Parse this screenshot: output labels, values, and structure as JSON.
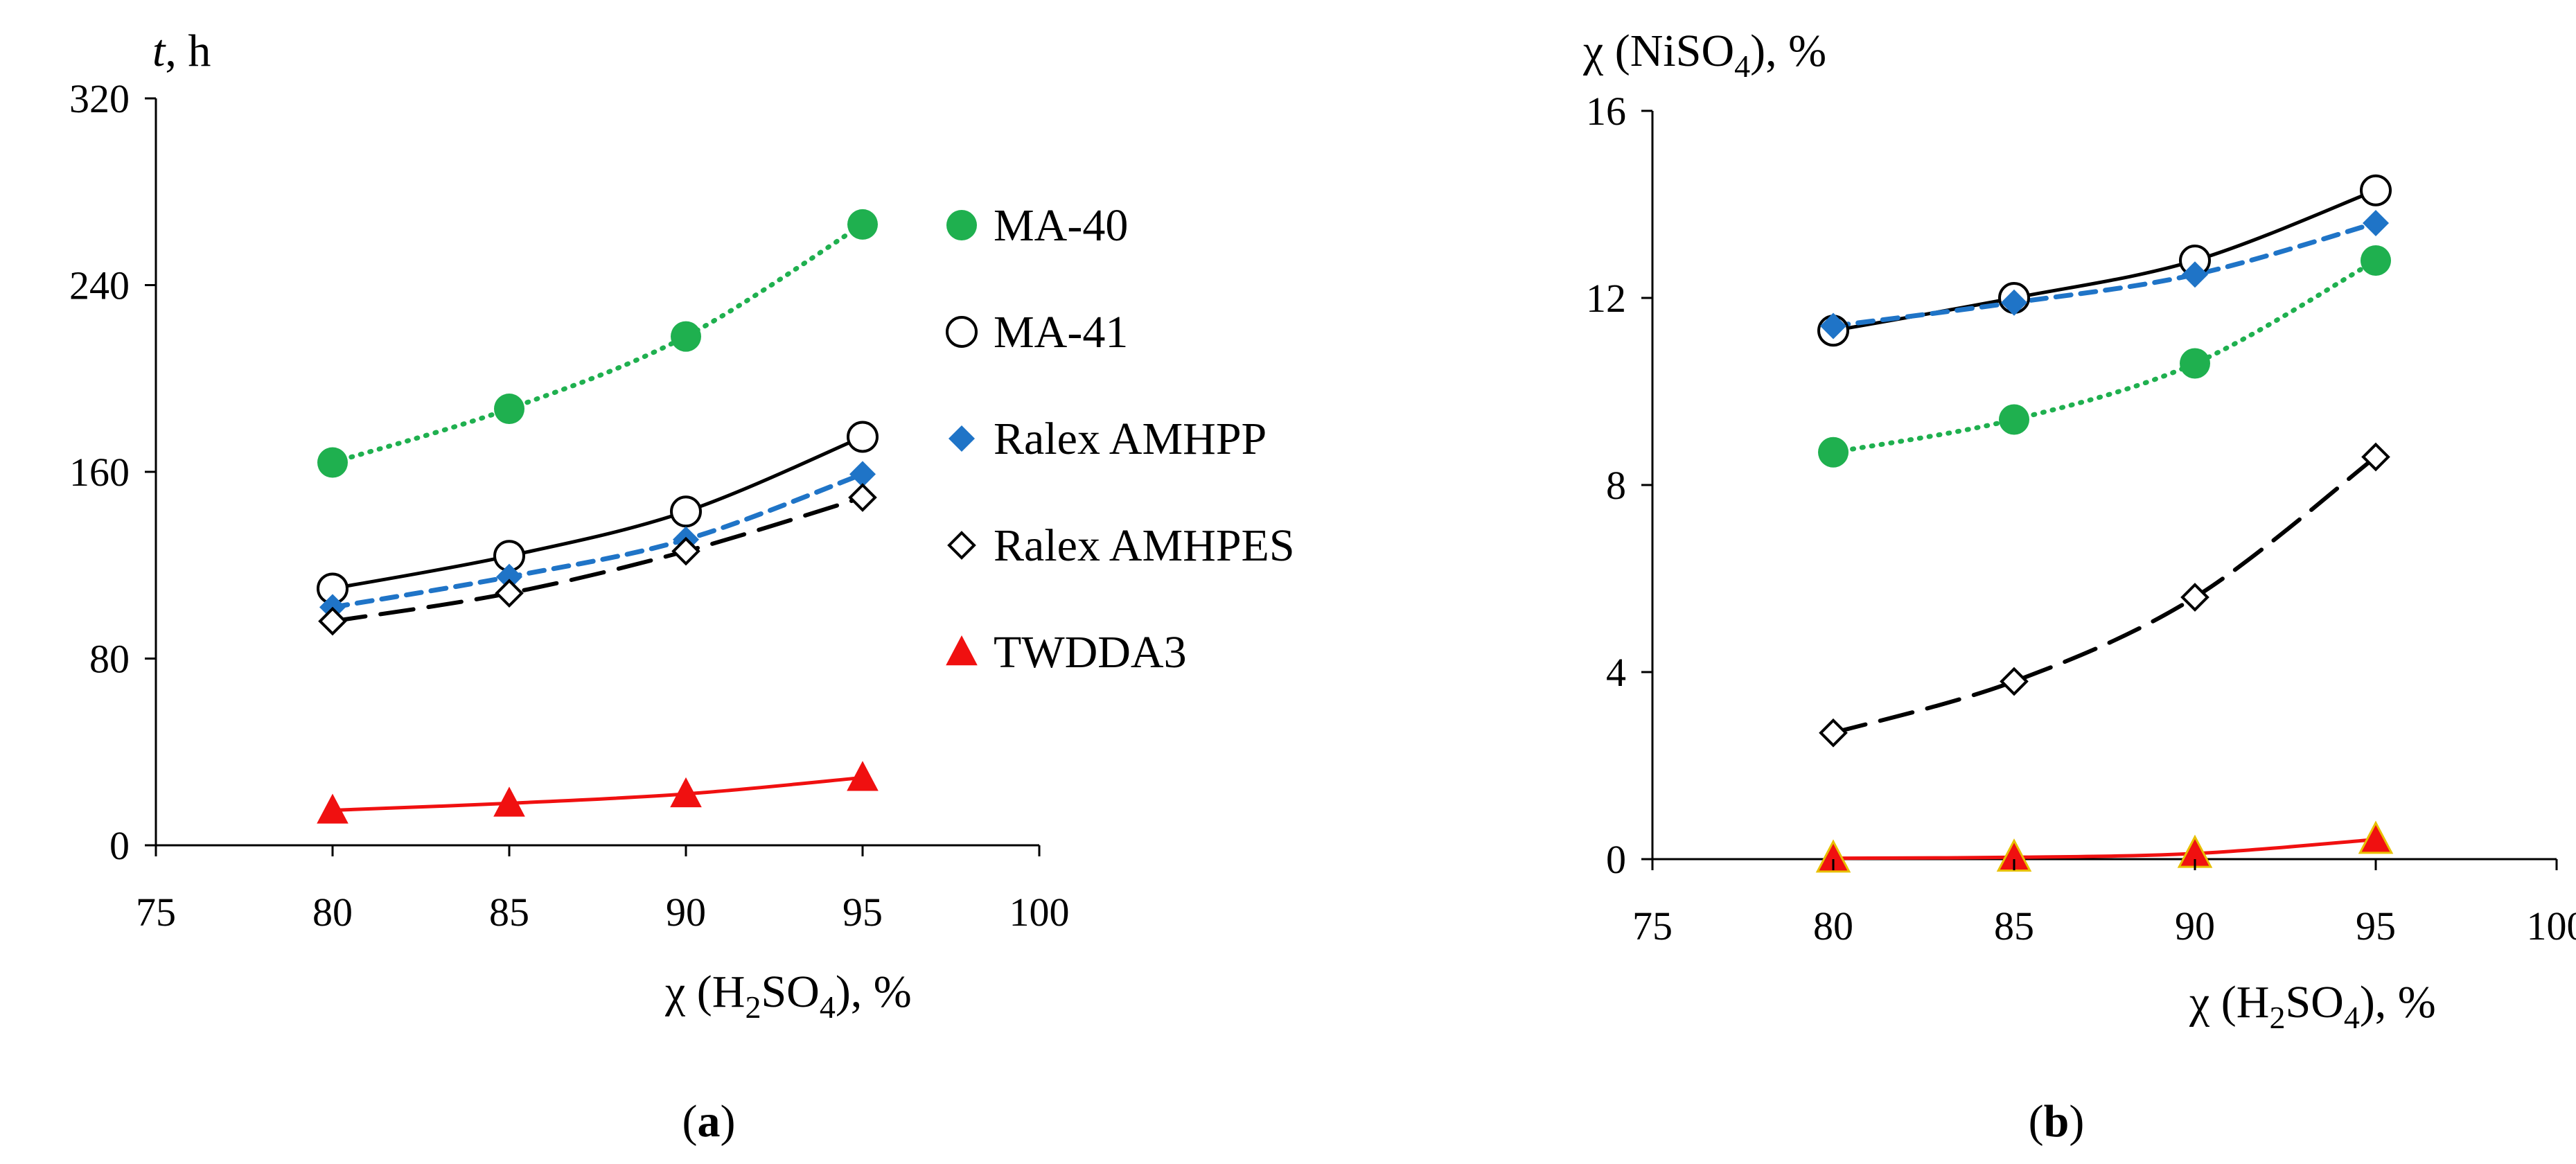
{
  "figure": {
    "panel_labels": [
      "(a)",
      "(b)"
    ],
    "colors": {
      "MA-40": "#1fb04f",
      "MA-41": "#000000",
      "Ralex AMHPP": "#1f74c7",
      "Ralex AMHPES": "#000000",
      "TWDDA3": "#f01010",
      "TWDDA3_outline": "#e8c000"
    }
  },
  "chart_data": [
    {
      "type": "line",
      "panel": "(a)",
      "ylabel": "t, h",
      "xlabel": "χ (H2SO4), %",
      "xlim": [
        75,
        100
      ],
      "ylim": [
        0,
        320
      ],
      "xticks": [
        75,
        80,
        85,
        90,
        95,
        100
      ],
      "yticks": [
        0,
        80,
        160,
        240,
        320
      ],
      "legend": [
        "MA-40",
        "MA-41",
        "Ralex AMHPP",
        "Ralex AMHPES",
        "TWDDA3"
      ],
      "x": [
        80,
        85,
        90,
        95
      ],
      "series": [
        {
          "name": "MA-40",
          "values": [
            164,
            187,
            218,
            266
          ],
          "marker": "circle-filled",
          "line": "dotted"
        },
        {
          "name": "MA-41",
          "values": [
            110,
            124,
            143,
            175
          ],
          "marker": "circle-open",
          "line": "solid"
        },
        {
          "name": "Ralex AMHPP",
          "values": [
            102,
            115,
            131,
            159
          ],
          "marker": "diamond-filled",
          "line": "dashed-short"
        },
        {
          "name": "Ralex AMHPES",
          "values": [
            96,
            108,
            126,
            149
          ],
          "marker": "diamond-open",
          "line": "dashed-long"
        },
        {
          "name": "TWDDA3",
          "values": [
            15,
            18,
            22,
            29
          ],
          "marker": "triangle-filled",
          "line": "solid"
        }
      ]
    },
    {
      "type": "line",
      "panel": "(b)",
      "ylabel": "χ (NiSO4), %",
      "xlabel": "χ (H2SO4), %",
      "xlim": [
        75,
        100
      ],
      "ylim": [
        0,
        16
      ],
      "xticks": [
        75,
        80,
        85,
        90,
        95,
        100
      ],
      "yticks": [
        0,
        4,
        8,
        12,
        16
      ],
      "x": [
        80,
        85,
        90,
        95
      ],
      "series": [
        {
          "name": "MA-40",
          "values": [
            8.7,
            9.4,
            10.6,
            12.8
          ],
          "marker": "circle-filled",
          "line": "dotted"
        },
        {
          "name": "MA-41",
          "values": [
            11.3,
            12.0,
            12.8,
            14.3
          ],
          "marker": "circle-open",
          "line": "solid"
        },
        {
          "name": "Ralex AMHPP",
          "values": [
            11.4,
            11.9,
            12.5,
            13.6
          ],
          "marker": "diamond-filled",
          "line": "dashed-short"
        },
        {
          "name": "Ralex AMHPES",
          "values": [
            2.7,
            3.8,
            5.6,
            8.6
          ],
          "marker": "diamond-open",
          "line": "dashed-long"
        },
        {
          "name": "TWDDA3",
          "values": [
            0.02,
            0.04,
            0.12,
            0.42
          ],
          "marker": "triangle-filled",
          "line": "solid"
        }
      ]
    }
  ]
}
